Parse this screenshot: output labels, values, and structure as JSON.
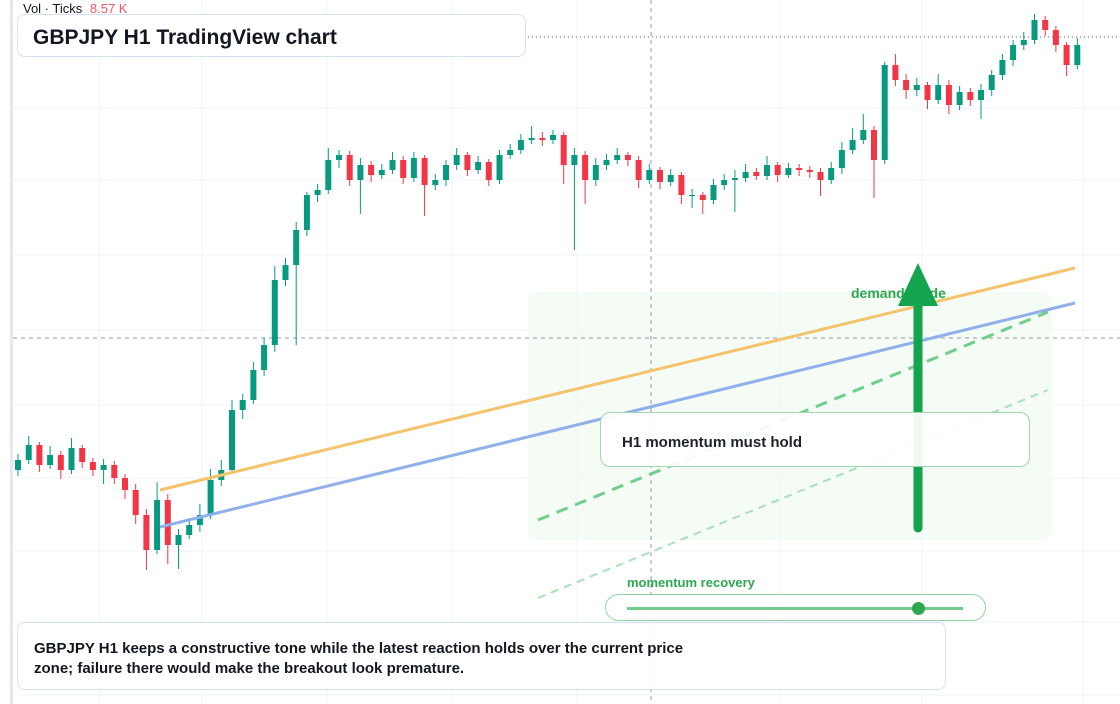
{
  "header": {
    "volume_label": "Vol · Ticks",
    "volume_value": "8.57 K",
    "title": "GBPJPY H1 TradingView chart"
  },
  "chart_data": {
    "type": "candlestick",
    "ylim": [
      0,
      704
    ],
    "up_color": "#089981",
    "down_color": "#f23645",
    "annotations": {
      "guide": "demand guide",
      "hold": "H1 momentum must hold",
      "recovery": "momentum recovery"
    },
    "candles": [
      [
        234,
        250,
        228,
        244
      ],
      [
        244,
        268,
        240,
        259
      ],
      [
        259,
        262,
        232,
        239
      ],
      [
        239,
        258,
        235,
        249
      ],
      [
        249,
        253,
        225,
        234
      ],
      [
        234,
        266,
        230,
        256
      ],
      [
        256,
        259,
        236,
        242
      ],
      [
        242,
        246,
        228,
        234
      ],
      [
        234,
        245,
        220,
        239
      ],
      [
        239,
        243,
        220,
        226
      ],
      [
        226,
        230,
        205,
        214
      ],
      [
        214,
        220,
        180,
        189
      ],
      [
        189,
        195,
        134,
        154
      ],
      [
        154,
        222,
        150,
        204
      ],
      [
        204,
        210,
        140,
        159
      ],
      [
        159,
        175,
        135,
        169
      ],
      [
        169,
        186,
        165,
        179
      ],
      [
        179,
        200,
        172,
        189
      ],
      [
        189,
        235,
        185,
        224
      ],
      [
        224,
        244,
        218,
        234
      ],
      [
        234,
        304,
        230,
        294
      ],
      [
        294,
        310,
        285,
        304
      ],
      [
        304,
        342,
        300,
        334
      ],
      [
        334,
        366,
        328,
        359
      ],
      [
        359,
        438,
        352,
        424
      ],
      [
        424,
        446,
        418,
        439
      ],
      [
        439,
        482,
        359,
        474
      ],
      [
        474,
        512,
        468,
        509
      ],
      [
        509,
        520,
        502,
        514
      ],
      [
        514,
        556,
        510,
        544
      ],
      [
        544,
        554,
        536,
        549
      ],
      [
        549,
        553,
        518,
        524
      ],
      [
        524,
        546,
        490,
        539
      ],
      [
        539,
        543,
        522,
        529
      ],
      [
        529,
        540,
        525,
        534
      ],
      [
        534,
        552,
        530,
        544
      ],
      [
        544,
        548,
        520,
        526
      ],
      [
        526,
        552,
        522,
        546
      ],
      [
        546,
        549,
        488,
        519
      ],
      [
        519,
        530,
        514,
        524
      ],
      [
        524,
        544,
        518,
        539
      ],
      [
        539,
        556,
        534,
        549
      ],
      [
        549,
        552,
        528,
        534
      ],
      [
        534,
        548,
        530,
        542
      ],
      [
        542,
        545,
        518,
        524
      ],
      [
        524,
        554,
        520,
        549
      ],
      [
        549,
        560,
        545,
        554
      ],
      [
        554,
        570,
        550,
        564
      ],
      [
        564,
        578,
        560,
        566
      ],
      [
        566,
        572,
        558,
        564
      ],
      [
        564,
        574,
        560,
        569
      ],
      [
        569,
        572,
        520,
        539
      ],
      [
        539,
        556,
        454,
        549
      ],
      [
        549,
        553,
        500,
        524
      ],
      [
        524,
        546,
        518,
        539
      ],
      [
        539,
        550,
        534,
        544
      ],
      [
        544,
        556,
        540,
        549
      ],
      [
        549,
        552,
        538,
        544
      ],
      [
        544,
        548,
        516,
        524
      ],
      [
        524,
        540,
        520,
        534
      ],
      [
        534,
        537,
        515,
        522
      ],
      [
        522,
        535,
        518,
        529
      ],
      [
        529,
        532,
        500,
        509
      ],
      [
        509,
        515,
        496,
        509
      ],
      [
        509,
        512,
        490,
        504
      ],
      [
        504,
        525,
        500,
        519
      ],
      [
        519,
        530,
        514,
        524
      ],
      [
        524,
        534,
        492,
        526
      ],
      [
        526,
        540,
        522,
        532
      ],
      [
        532,
        536,
        524,
        528
      ],
      [
        528,
        548,
        524,
        539
      ],
      [
        539,
        542,
        522,
        529
      ],
      [
        529,
        541,
        526,
        536
      ],
      [
        536,
        540,
        528,
        534
      ],
      [
        534,
        538,
        526,
        532
      ],
      [
        532,
        536,
        508,
        524
      ],
      [
        524,
        542,
        520,
        536
      ],
      [
        536,
        562,
        530,
        554
      ],
      [
        554,
        576,
        550,
        564
      ],
      [
        564,
        590,
        560,
        574
      ],
      [
        574,
        578,
        506,
        544
      ],
      [
        544,
        642,
        540,
        639
      ],
      [
        639,
        650,
        618,
        624
      ],
      [
        624,
        630,
        605,
        614
      ],
      [
        614,
        626,
        608,
        619
      ],
      [
        619,
        622,
        595,
        604
      ],
      [
        604,
        630,
        600,
        619
      ],
      [
        619,
        624,
        590,
        599
      ],
      [
        599,
        618,
        594,
        612
      ],
      [
        612,
        616,
        598,
        604
      ],
      [
        604,
        620,
        585,
        614
      ],
      [
        614,
        634,
        608,
        629
      ],
      [
        629,
        650,
        624,
        644
      ],
      [
        644,
        664,
        638,
        659
      ],
      [
        659,
        672,
        654,
        664
      ],
      [
        664,
        690,
        660,
        684
      ],
      [
        684,
        688,
        668,
        674
      ],
      [
        674,
        678,
        652,
        659
      ],
      [
        659,
        662,
        628,
        639
      ],
      [
        639,
        666,
        635,
        659
      ]
    ]
  },
  "footer": {
    "text": "GBPJPY H1 keeps a constructive tone while the latest reaction holds over the current price zone; failure there would make the breakout look premature."
  }
}
